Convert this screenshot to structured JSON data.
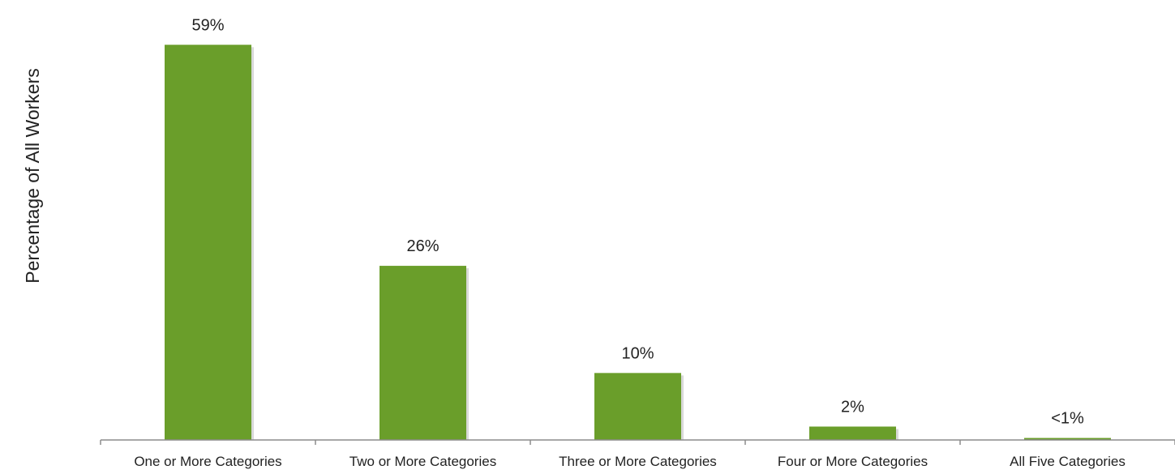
{
  "chart_data": {
    "type": "bar",
    "ylabel": "Percentage of All Workers",
    "xlabel": "",
    "categories": [
      "One or More Categories",
      "Two or More Categories",
      "Three or More Categories",
      "Four or More Categories",
      "All Five Categories"
    ],
    "values": [
      59,
      26,
      10,
      2,
      0.3
    ],
    "data_labels": [
      "59%",
      "26%",
      "10%",
      "2%",
      "<1%"
    ],
    "ylim": [
      0,
      60
    ],
    "grid": false,
    "legend": "none",
    "colors": {
      "bar": "#6a9e2a",
      "bar_shadow": "#b9b9b9",
      "axis": "#8c8c8c"
    }
  }
}
